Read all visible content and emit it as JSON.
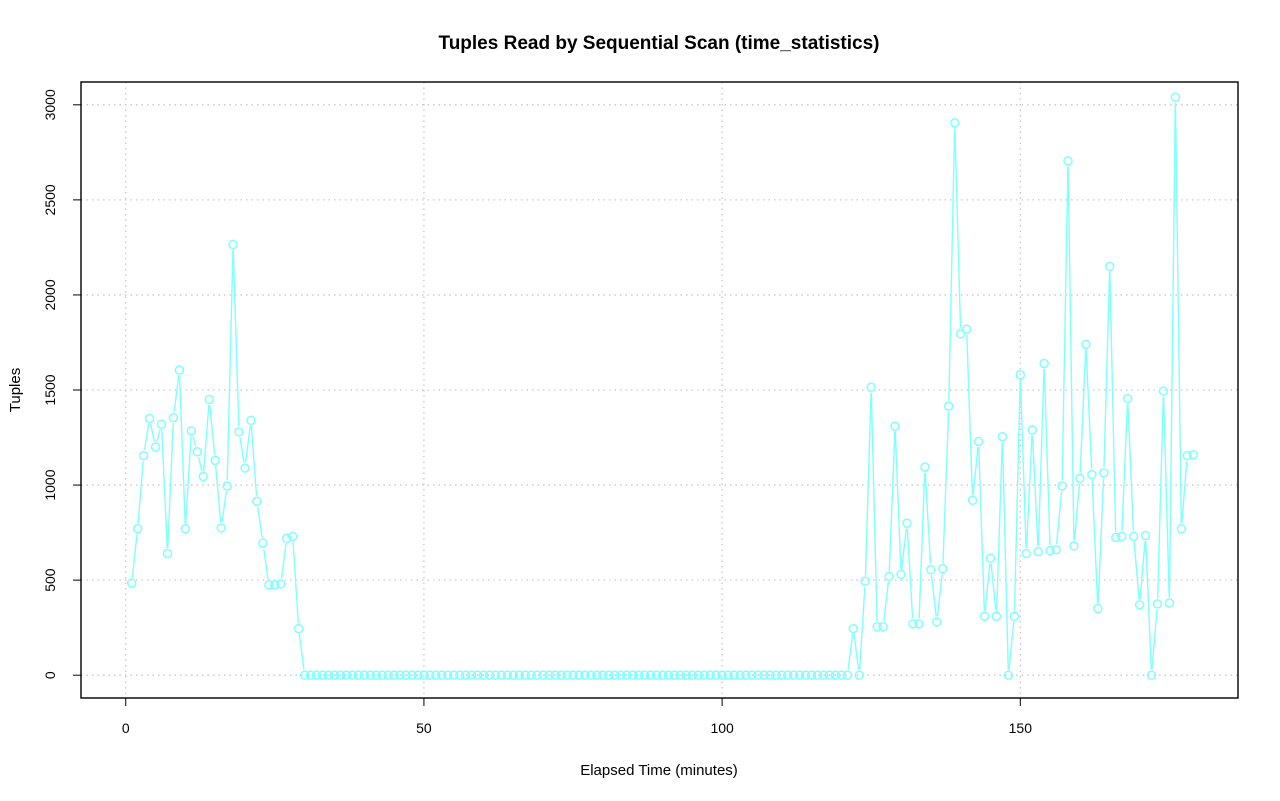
{
  "chart_data": {
    "type": "line",
    "title": "Tuples Read by Sequential Scan (time_statistics)",
    "xlabel": "Elapsed Time (minutes)",
    "ylabel": "Tuples",
    "xlim": [
      -7.5,
      186.5
    ],
    "ylim": [
      -120,
      3120
    ],
    "x_ticks": [
      0,
      50,
      100,
      150
    ],
    "y_ticks": [
      0,
      500,
      1000,
      1500,
      2000,
      2500,
      3000
    ],
    "grid": true,
    "legend": "none",
    "line_color": "#80ffff",
    "marker": "open-circle",
    "series": [
      {
        "x": [
          1,
          2,
          3,
          4,
          5,
          6,
          7,
          8,
          9,
          10,
          11,
          12,
          13,
          14,
          15,
          16,
          17,
          18,
          19,
          20,
          21,
          22,
          23,
          24,
          25,
          26,
          27,
          28,
          29,
          30,
          31,
          32,
          33,
          34,
          35,
          36,
          37,
          38,
          39,
          40,
          41,
          42,
          43,
          44,
          45,
          46,
          47,
          48,
          49,
          50,
          51,
          52,
          53,
          54,
          55,
          56,
          57,
          58,
          59,
          60,
          61,
          62,
          63,
          64,
          65,
          66,
          67,
          68,
          69,
          70,
          71,
          72,
          73,
          74,
          75,
          76,
          77,
          78,
          79,
          80,
          81,
          82,
          83,
          84,
          85,
          86,
          87,
          88,
          89,
          90,
          91,
          92,
          93,
          94,
          95,
          96,
          97,
          98,
          99,
          100,
          101,
          102,
          103,
          104,
          105,
          106,
          107,
          108,
          109,
          110,
          111,
          112,
          113,
          114,
          115,
          116,
          117,
          118,
          119,
          120,
          121,
          122,
          123,
          124,
          125,
          126,
          127,
          128,
          129,
          130,
          131,
          132,
          133,
          134,
          135,
          136,
          137,
          138,
          139,
          140,
          141,
          142,
          143,
          144,
          145,
          146,
          147,
          148,
          149,
          150,
          151,
          152,
          153,
          154,
          155,
          156,
          157,
          158,
          159,
          160,
          161,
          162,
          163,
          164,
          165,
          166,
          167,
          168,
          169,
          170,
          171,
          172,
          173,
          174,
          175,
          176,
          177,
          178,
          179
        ],
        "y": [
          485,
          770,
          1155,
          1350,
          1200,
          1320,
          640,
          1355,
          1605,
          770,
          1285,
          1175,
          1045,
          1450,
          1130,
          775,
          995,
          2265,
          1280,
          1090,
          1340,
          915,
          695,
          475,
          475,
          480,
          720,
          730,
          245,
          0,
          0,
          0,
          0,
          0,
          0,
          0,
          0,
          0,
          0,
          0,
          0,
          0,
          0,
          0,
          0,
          0,
          0,
          0,
          0,
          0,
          0,
          0,
          0,
          0,
          0,
          0,
          0,
          0,
          0,
          0,
          0,
          0,
          0,
          0,
          0,
          0,
          0,
          0,
          0,
          0,
          0,
          0,
          0,
          0,
          0,
          0,
          0,
          0,
          0,
          0,
          0,
          0,
          0,
          0,
          0,
          0,
          0,
          0,
          0,
          0,
          0,
          0,
          0,
          0,
          0,
          0,
          0,
          0,
          0,
          0,
          0,
          0,
          0,
          0,
          0,
          0,
          0,
          0,
          0,
          0,
          0,
          0,
          0,
          0,
          0,
          0,
          0,
          0,
          0,
          0,
          0,
          245,
          0,
          495,
          1515,
          255,
          255,
          520,
          1310,
          530,
          800,
          270,
          270,
          1095,
          555,
          280,
          560,
          1415,
          2905,
          1795,
          1820,
          920,
          1230,
          310,
          615,
          310,
          1255,
          0,
          310,
          1580,
          640,
          1290,
          650,
          1640,
          655,
          660,
          995,
          2705,
          680,
          1035,
          1740,
          1055,
          350,
          1065,
          2150,
          725,
          730,
          1455,
          730,
          370,
          735,
          0,
          375,
          1495,
          380,
          3040,
          770,
          1155,
          1160
        ]
      }
    ]
  }
}
